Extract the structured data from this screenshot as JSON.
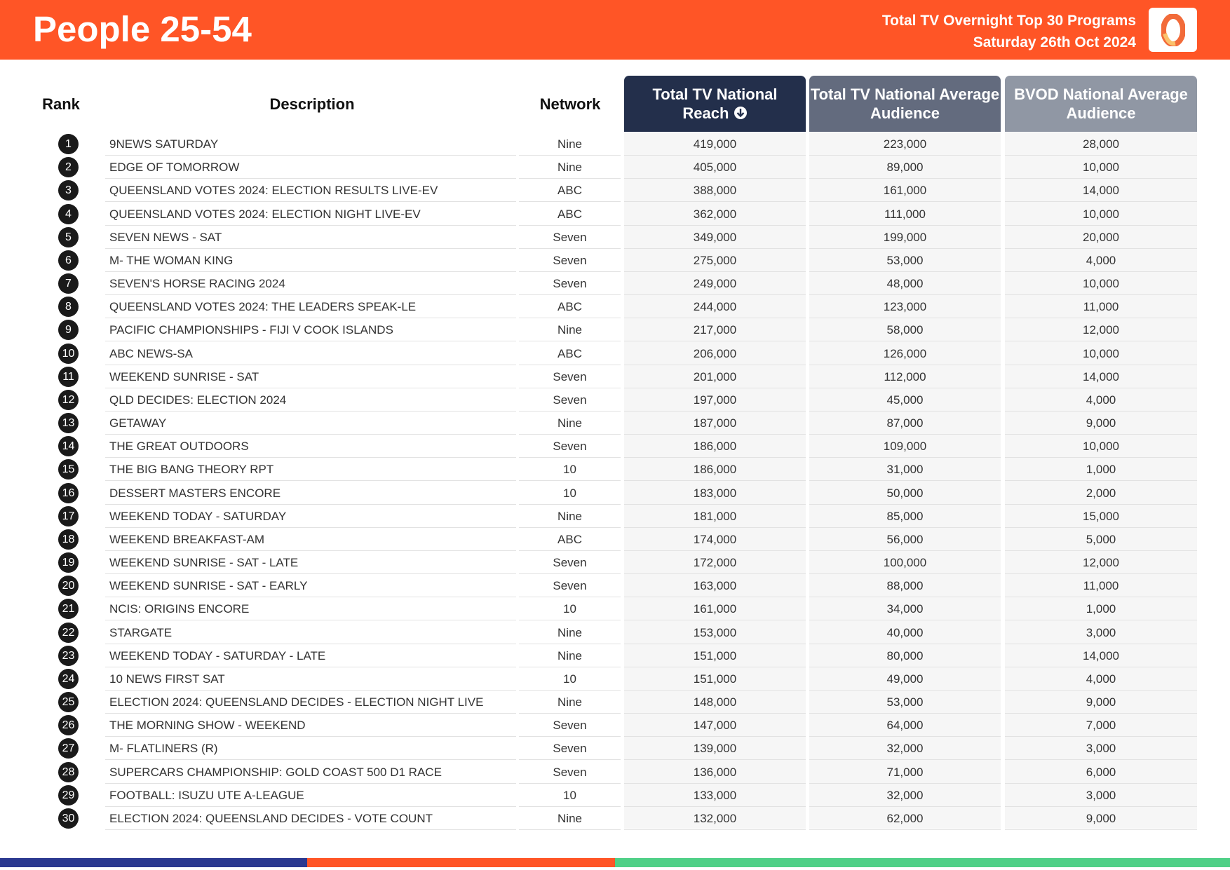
{
  "header": {
    "title": "People 25-54",
    "subtitle_line1": "Total TV Overnight Top 30 Programs",
    "subtitle_line2": "Saturday 26th Oct 2024",
    "logo_text": "0"
  },
  "columns": {
    "rank": "Rank",
    "description": "Description",
    "network": "Network",
    "reach": "Total TV National Reach",
    "avg": "Total TV National Average Audience",
    "bvod": "BVOD National Average Audience",
    "sort_icon": "arrow-down-circle-icon"
  },
  "colors": {
    "header": "#ff5526",
    "reach_col": "#232f4b",
    "avg_col": "#636b7e",
    "bvod_col": "#9097a4",
    "bar_blue": "#2b3990",
    "bar_orange": "#ff5526",
    "bar_green": "#4fd087"
  },
  "rows": [
    [
      "1",
      "9NEWS SATURDAY",
      "Nine",
      "419,000",
      "223,000",
      "28,000"
    ],
    [
      "2",
      "EDGE OF TOMORROW",
      "Nine",
      "405,000",
      "89,000",
      "10,000"
    ],
    [
      "3",
      "QUEENSLAND VOTES 2024: ELECTION RESULTS LIVE-EV",
      "ABC",
      "388,000",
      "161,000",
      "14,000"
    ],
    [
      "4",
      "QUEENSLAND VOTES 2024: ELECTION NIGHT LIVE-EV",
      "ABC",
      "362,000",
      "111,000",
      "10,000"
    ],
    [
      "5",
      "SEVEN NEWS - SAT",
      "Seven",
      "349,000",
      "199,000",
      "20,000"
    ],
    [
      "6",
      "M- THE WOMAN KING",
      "Seven",
      "275,000",
      "53,000",
      "4,000"
    ],
    [
      "7",
      "SEVEN'S HORSE RACING 2024",
      "Seven",
      "249,000",
      "48,000",
      "10,000"
    ],
    [
      "8",
      "QUEENSLAND VOTES 2024: THE LEADERS SPEAK-LE",
      "ABC",
      "244,000",
      "123,000",
      "11,000"
    ],
    [
      "9",
      "PACIFIC CHAMPIONSHIPS - FIJI V COOK ISLANDS",
      "Nine",
      "217,000",
      "58,000",
      "12,000"
    ],
    [
      "10",
      "ABC NEWS-SA",
      "ABC",
      "206,000",
      "126,000",
      "10,000"
    ],
    [
      "11",
      "WEEKEND SUNRISE - SAT",
      "Seven",
      "201,000",
      "112,000",
      "14,000"
    ],
    [
      "12",
      "QLD DECIDES: ELECTION 2024",
      "Seven",
      "197,000",
      "45,000",
      "4,000"
    ],
    [
      "13",
      "GETAWAY",
      "Nine",
      "187,000",
      "87,000",
      "9,000"
    ],
    [
      "14",
      "THE GREAT OUTDOORS",
      "Seven",
      "186,000",
      "109,000",
      "10,000"
    ],
    [
      "15",
      "THE BIG BANG THEORY RPT",
      "10",
      "186,000",
      "31,000",
      "1,000"
    ],
    [
      "16",
      "DESSERT MASTERS ENCORE",
      "10",
      "183,000",
      "50,000",
      "2,000"
    ],
    [
      "17",
      "WEEKEND TODAY - SATURDAY",
      "Nine",
      "181,000",
      "85,000",
      "15,000"
    ],
    [
      "18",
      "WEEKEND BREAKFAST-AM",
      "ABC",
      "174,000",
      "56,000",
      "5,000"
    ],
    [
      "19",
      "WEEKEND SUNRISE - SAT - LATE",
      "Seven",
      "172,000",
      "100,000",
      "12,000"
    ],
    [
      "20",
      "WEEKEND SUNRISE - SAT - EARLY",
      "Seven",
      "163,000",
      "88,000",
      "11,000"
    ],
    [
      "21",
      "NCIS: ORIGINS ENCORE",
      "10",
      "161,000",
      "34,000",
      "1,000"
    ],
    [
      "22",
      "STARGATE",
      "Nine",
      "153,000",
      "40,000",
      "3,000"
    ],
    [
      "23",
      "WEEKEND TODAY - SATURDAY - LATE",
      "Nine",
      "151,000",
      "80,000",
      "14,000"
    ],
    [
      "24",
      "10 NEWS FIRST SAT",
      "10",
      "151,000",
      "49,000",
      "4,000"
    ],
    [
      "25",
      "ELECTION 2024: QUEENSLAND DECIDES - ELECTION NIGHT LIVE",
      "Nine",
      "148,000",
      "53,000",
      "9,000"
    ],
    [
      "26",
      "THE MORNING SHOW - WEEKEND",
      "Seven",
      "147,000",
      "64,000",
      "7,000"
    ],
    [
      "27",
      "M- FLATLINERS (R)",
      "Seven",
      "139,000",
      "32,000",
      "3,000"
    ],
    [
      "28",
      "SUPERCARS CHAMPIONSHIP: GOLD COAST 500 D1 RACE",
      "Seven",
      "136,000",
      "71,000",
      "6,000"
    ],
    [
      "29",
      "FOOTBALL: ISUZU UTE A-LEAGUE",
      "10",
      "133,000",
      "32,000",
      "3,000"
    ],
    [
      "30",
      "ELECTION 2024: QUEENSLAND DECIDES - VOTE COUNT",
      "Nine",
      "132,000",
      "62,000",
      "9,000"
    ]
  ]
}
